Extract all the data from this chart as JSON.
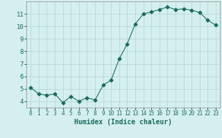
{
  "x": [
    0,
    1,
    2,
    3,
    4,
    5,
    6,
    7,
    8,
    9,
    10,
    11,
    12,
    13,
    14,
    15,
    16,
    17,
    18,
    19,
    20,
    21,
    22,
    23
  ],
  "y": [
    5.1,
    4.6,
    4.5,
    4.6,
    3.9,
    4.4,
    4.0,
    4.3,
    4.1,
    5.3,
    5.7,
    7.4,
    8.6,
    10.2,
    11.0,
    11.15,
    11.35,
    11.55,
    11.35,
    11.4,
    11.3,
    11.1,
    10.5,
    10.1
  ],
  "line_color": "#1a6b5e",
  "marker": "D",
  "marker_size": 2.5,
  "bg_color": "#d4efed",
  "grid_color": "#b0d4d0",
  "xlabel": "Humidex (Indice chaleur)",
  "xlabel_fontsize": 7,
  "tick_fontsize_x": 5.5,
  "tick_fontsize_y": 6.5,
  "ylim": [
    3.5,
    12.0
  ],
  "xlim": [
    -0.5,
    23.5
  ],
  "yticks": [
    4,
    5,
    6,
    7,
    8,
    9,
    10,
    11
  ],
  "xticks": [
    0,
    1,
    2,
    3,
    4,
    5,
    6,
    7,
    8,
    9,
    10,
    11,
    12,
    13,
    14,
    15,
    16,
    17,
    18,
    19,
    20,
    21,
    22,
    23
  ]
}
